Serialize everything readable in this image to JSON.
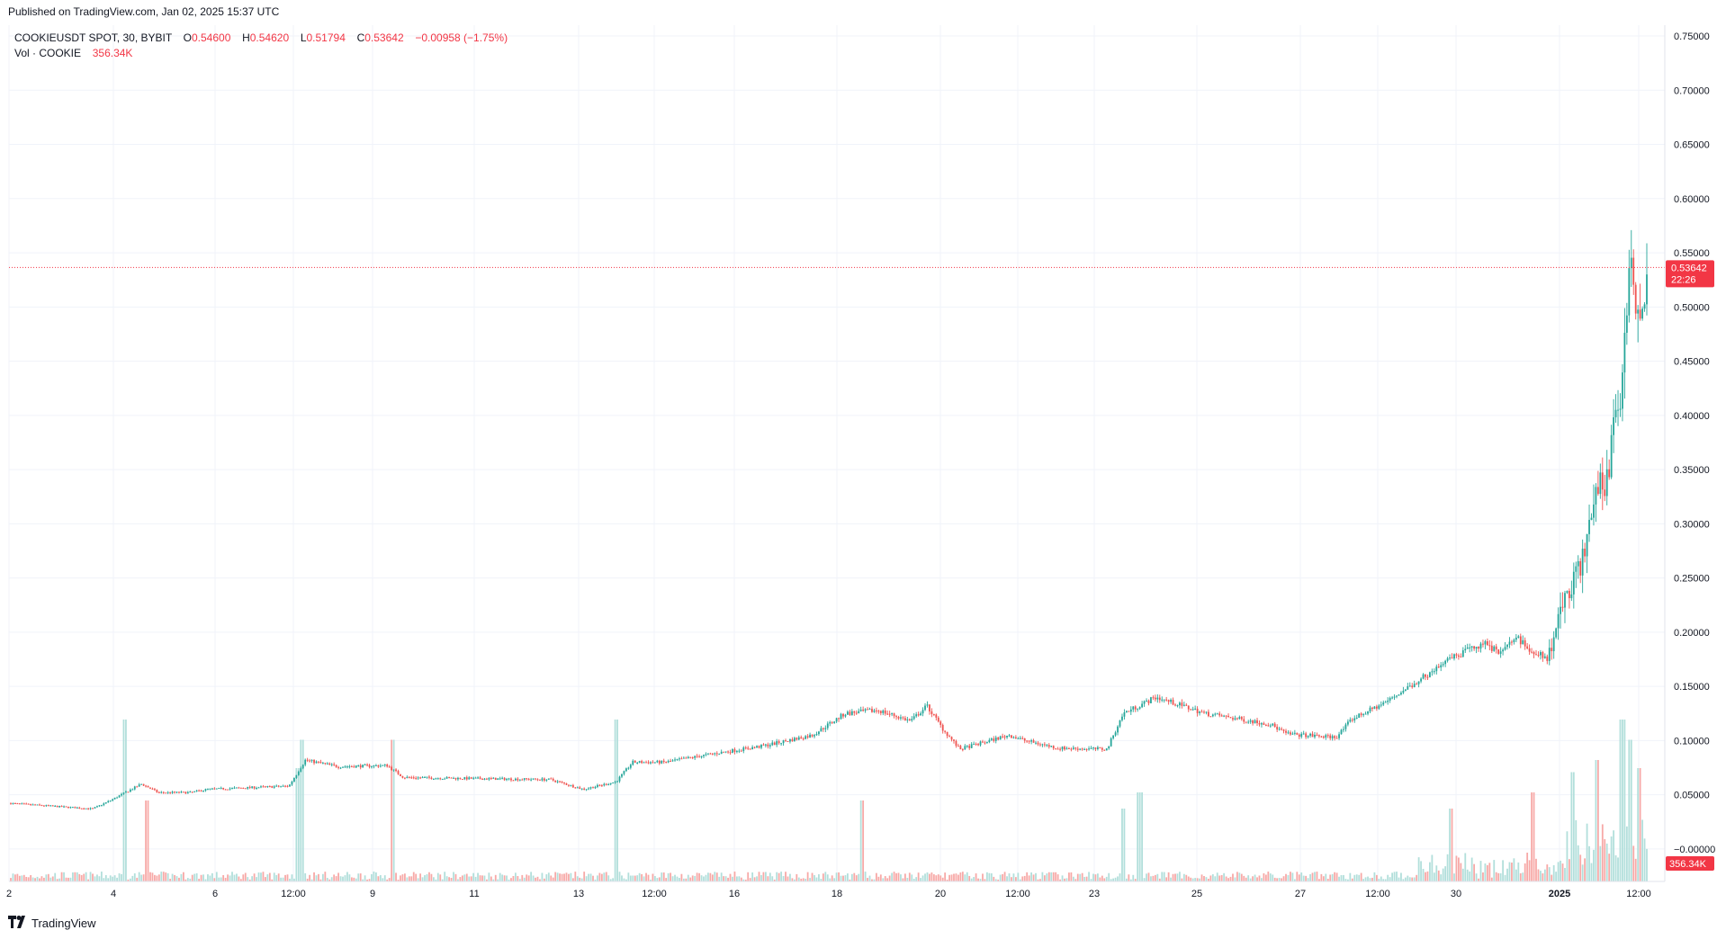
{
  "header": {
    "published": "Published on TradingView.com, Jan 02, 2025 15:37 UTC"
  },
  "legend": {
    "symbol": "COOKIEUSDT SPOT, 30, BYBIT",
    "o_label": "O",
    "o_value": "0.54600",
    "h_label": "H",
    "h_value": "0.54620",
    "l_label": "L",
    "l_value": "0.51794",
    "c_label": "C",
    "c_value": "0.53642",
    "change": "−0.00958 (−1.75%)",
    "vol_label": "Vol · COOKIE",
    "vol_value": "356.34K"
  },
  "badges": {
    "price": "0.53642",
    "countdown": "22:26",
    "volume": "356.34K"
  },
  "footer": {
    "logo": "TradingView"
  },
  "colors": {
    "up": "#26a69a",
    "down": "#ef5350",
    "vol_up": "#b2dfdb",
    "vol_down": "#f7a9a7",
    "grid": "#f0f3fa",
    "badge": "#f23645",
    "text": "#131722"
  },
  "chart_data": {
    "type": "candlestick",
    "interval": "30",
    "y_axis": {
      "side": "right",
      "ticks": [
        "0.75000",
        "0.70000",
        "0.65000",
        "0.60000",
        "0.55000",
        "0.50000",
        "0.45000",
        "0.40000",
        "0.35000",
        "0.30000",
        "0.25000",
        "0.20000",
        "0.15000",
        "0.10000",
        "0.05000",
        "−0.00000"
      ],
      "range": [
        -0.03,
        0.76
      ]
    },
    "x_axis": {
      "ticks": [
        "2",
        "4",
        "6",
        "12:00",
        "9",
        "11",
        "13",
        "12:00",
        "16",
        "18",
        "20",
        "12:00",
        "23",
        "25",
        "27",
        "12:00",
        "30",
        "2025",
        "12:00"
      ],
      "bold_ticks": [
        "2025"
      ]
    },
    "last_price": 0.53642,
    "price_path": [
      [
        0,
        0.042
      ],
      [
        0.05,
        0.037
      ],
      [
        0.06,
        0.044
      ],
      [
        0.08,
        0.06
      ],
      [
        0.09,
        0.052
      ],
      [
        0.11,
        0.052
      ],
      [
        0.12,
        0.055
      ],
      [
        0.17,
        0.058
      ],
      [
        0.18,
        0.082
      ],
      [
        0.2,
        0.076
      ],
      [
        0.23,
        0.077
      ],
      [
        0.24,
        0.066
      ],
      [
        0.28,
        0.065
      ],
      [
        0.33,
        0.064
      ],
      [
        0.35,
        0.055
      ],
      [
        0.37,
        0.062
      ],
      [
        0.38,
        0.08
      ],
      [
        0.4,
        0.08
      ],
      [
        0.43,
        0.088
      ],
      [
        0.46,
        0.095
      ],
      [
        0.49,
        0.105
      ],
      [
        0.51,
        0.125
      ],
      [
        0.53,
        0.128
      ],
      [
        0.55,
        0.118
      ],
      [
        0.56,
        0.132
      ],
      [
        0.57,
        0.11
      ],
      [
        0.58,
        0.092
      ],
      [
        0.61,
        0.105
      ],
      [
        0.62,
        0.1
      ],
      [
        0.64,
        0.093
      ],
      [
        0.67,
        0.092
      ],
      [
        0.68,
        0.125
      ],
      [
        0.7,
        0.14
      ],
      [
        0.73,
        0.125
      ],
      [
        0.77,
        0.115
      ],
      [
        0.78,
        0.106
      ],
      [
        0.81,
        0.103
      ],
      [
        0.82,
        0.12
      ],
      [
        0.84,
        0.135
      ],
      [
        0.86,
        0.155
      ],
      [
        0.88,
        0.175
      ],
      [
        0.9,
        0.19
      ],
      [
        0.91,
        0.182
      ],
      [
        0.92,
        0.195
      ],
      [
        0.93,
        0.183
      ],
      [
        0.94,
        0.175
      ],
      [
        0.95,
        0.235
      ],
      [
        0.96,
        0.26
      ],
      [
        0.97,
        0.34
      ],
      [
        0.975,
        0.33
      ],
      [
        0.98,
        0.39
      ],
      [
        0.985,
        0.42
      ],
      [
        0.99,
        0.58
      ],
      [
        0.995,
        0.48
      ],
      [
        1.0,
        0.53642
      ]
    ],
    "volume_spikes": [
      [
        0.07,
        40
      ],
      [
        0.083,
        20
      ],
      [
        0.175,
        28
      ],
      [
        0.178,
        35
      ],
      [
        0.233,
        35
      ],
      [
        0.37,
        40
      ],
      [
        0.52,
        20
      ],
      [
        0.68,
        18
      ],
      [
        0.69,
        22
      ],
      [
        0.88,
        18
      ],
      [
        0.93,
        22
      ],
      [
        0.955,
        27
      ],
      [
        0.97,
        30
      ],
      [
        0.985,
        40
      ],
      [
        0.99,
        35
      ],
      [
        0.995,
        28
      ]
    ]
  }
}
